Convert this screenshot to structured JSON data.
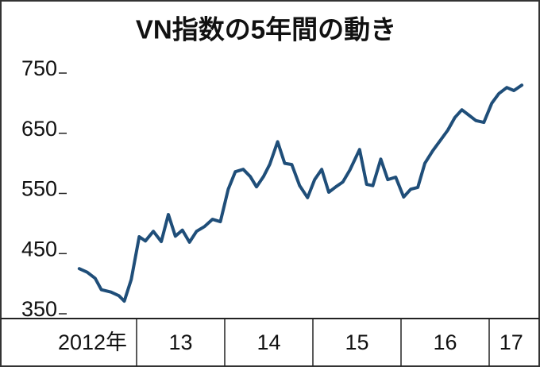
{
  "chart_data": {
    "type": "line",
    "title": "VN指数の5年間の動き",
    "categories": [
      "2012年",
      "13",
      "14",
      "15",
      "16",
      "17"
    ],
    "xlim": [
      2012,
      2017.5
    ],
    "ylim": [
      350,
      750
    ],
    "yticks": [
      350,
      450,
      550,
      650,
      750
    ],
    "series": [
      {
        "name": "VN指数",
        "color": "#1f4e79",
        "x": [
          2012.35,
          2012.44,
          2012.53,
          2012.6,
          2012.71,
          2012.8,
          2012.86,
          2012.94,
          2013.03,
          2013.1,
          2013.19,
          2013.28,
          2013.36,
          2013.44,
          2013.52,
          2013.6,
          2013.68,
          2013.77,
          2013.86,
          2013.95,
          2014.04,
          2014.12,
          2014.21,
          2014.29,
          2014.36,
          2014.44,
          2014.51,
          2014.6,
          2014.68,
          2014.76,
          2014.85,
          2014.94,
          2015.02,
          2015.1,
          2015.18,
          2015.26,
          2015.34,
          2015.42,
          2015.53,
          2015.61,
          2015.68,
          2015.77,
          2015.85,
          2015.94,
          2016.03,
          2016.11,
          2016.19,
          2016.27,
          2016.36,
          2016.45,
          2016.53,
          2016.61,
          2016.69,
          2016.77,
          2016.85,
          2016.94,
          2017.03,
          2017.11,
          2017.2,
          2017.28,
          2017.37
        ],
        "values": [
          425,
          419,
          409,
          390,
          386,
          380,
          371,
          407,
          478,
          471,
          487,
          470,
          515,
          479,
          489,
          469,
          487,
          495,
          507,
          503,
          557,
          586,
          590,
          578,
          561,
          578,
          598,
          636,
          600,
          598,
          563,
          543,
          573,
          590,
          552,
          561,
          569,
          589,
          623,
          565,
          563,
          607,
          573,
          577,
          544,
          557,
          560,
          600,
          621,
          639,
          655,
          676,
          689,
          680,
          671,
          668,
          700,
          716,
          726,
          721,
          730
        ]
      }
    ]
  }
}
